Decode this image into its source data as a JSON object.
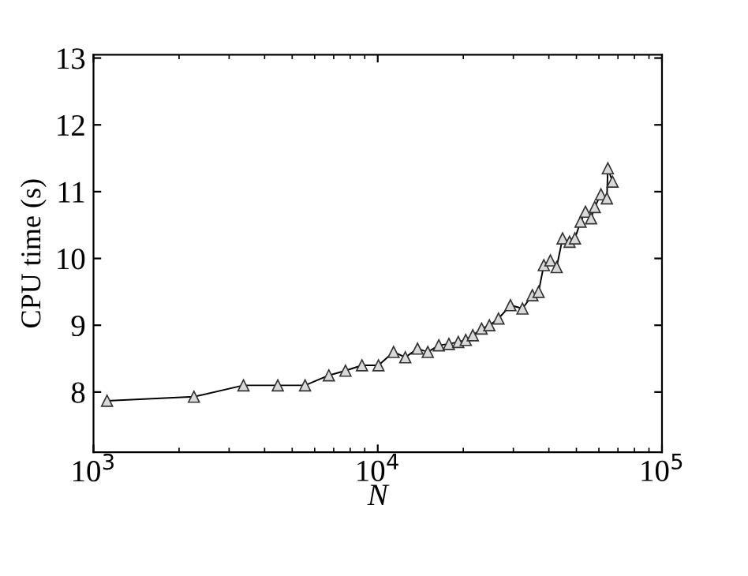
{
  "chart_data": {
    "type": "line",
    "xlabel": "N",
    "ylabel": "CPU time (s)",
    "log": "x",
    "marker": "triangle",
    "line_style": "solid",
    "grid": false,
    "xlim": [
      1000,
      100000
    ],
    "xticks": [
      {
        "value": 1000,
        "label": "10$^{3}$"
      },
      {
        "value": 10000,
        "label": "10$^{4}$"
      },
      {
        "value": 100000,
        "label": "10$^{5}$"
      }
    ],
    "ylim": [
      7.1,
      13.05
    ],
    "yticks": [
      8,
      9,
      10,
      11,
      12,
      13
    ],
    "series": [
      {
        "color": "#000000",
        "x": [
          1116,
          2256,
          3370,
          4450,
          5550,
          6730,
          7700,
          8800,
          10060,
          11370,
          12500,
          13800,
          15000,
          16400,
          17800,
          19200,
          20400,
          21600,
          23200,
          24700,
          26600,
          29300,
          32300,
          35000,
          36800,
          38400,
          40500,
          42600,
          44700,
          47300,
          49400,
          51700,
          53800,
          56300,
          58000,
          61000,
          64000,
          64500,
          67000
        ],
        "values": [
          7.87,
          7.93,
          8.1,
          8.1,
          8.1,
          8.25,
          8.32,
          8.4,
          8.4,
          8.6,
          8.52,
          8.65,
          8.6,
          8.7,
          8.72,
          8.75,
          8.78,
          8.85,
          8.95,
          9.0,
          9.1,
          9.3,
          9.25,
          9.45,
          9.5,
          9.9,
          9.97,
          9.87,
          10.3,
          10.25,
          10.3,
          10.55,
          10.7,
          10.6,
          10.77,
          10.96,
          10.9,
          11.35,
          11.15
        ]
      }
    ]
  }
}
